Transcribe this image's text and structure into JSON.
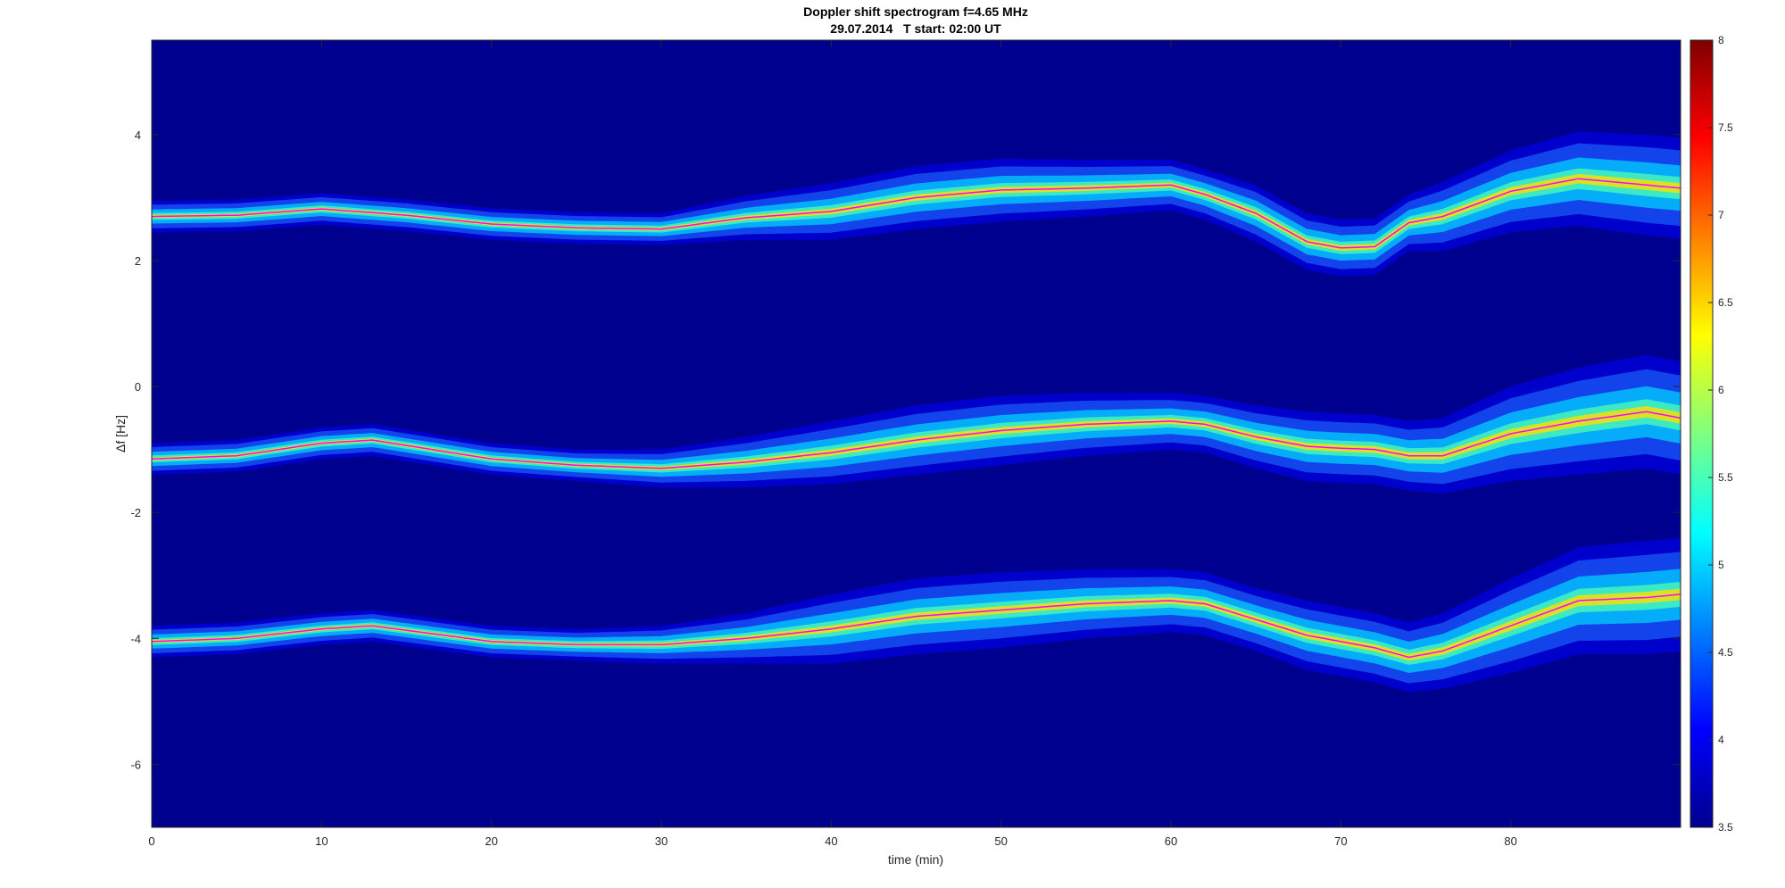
{
  "chart_data": {
    "type": "heatmap",
    "title": "Doppler shift spectrogram f=4.65 MHz",
    "subtitle": "29.07.2014   T start: 02:00 UT",
    "xlabel": "time (min)",
    "ylabel": "Δf [Hz]",
    "xlim": [
      0,
      90
    ],
    "ylim": [
      -7,
      5.5
    ],
    "xticks": [
      0,
      10,
      20,
      30,
      40,
      50,
      60,
      70,
      80
    ],
    "yticks": [
      4,
      2,
      0,
      -2,
      -4,
      -6
    ],
    "colorbar": {
      "range": [
        3.5,
        8
      ],
      "ticks": [
        3.5,
        4,
        4.5,
        5,
        5.5,
        6,
        6.5,
        7,
        7.5,
        8
      ],
      "colormap": "jet"
    },
    "background_color": "#00008f",
    "traces": [
      {
        "x": [
          0,
          5,
          10,
          15,
          20,
          25,
          30,
          35,
          40,
          45,
          50,
          55,
          60,
          62,
          65,
          68,
          70,
          72,
          74,
          76,
          80,
          84,
          88,
          90
        ],
        "y": [
          2.7,
          2.72,
          2.82,
          2.72,
          2.58,
          2.52,
          2.5,
          2.68,
          2.78,
          3.0,
          3.12,
          3.15,
          3.2,
          3.05,
          2.75,
          2.3,
          2.2,
          2.22,
          2.6,
          2.7,
          3.1,
          3.3,
          3.2,
          3.15
        ],
        "spread": [
          0.25,
          0.25,
          0.25,
          0.25,
          0.25,
          0.25,
          0.25,
          0.35,
          0.45,
          0.5,
          0.5,
          0.45,
          0.4,
          0.4,
          0.45,
          0.45,
          0.45,
          0.45,
          0.45,
          0.55,
          0.65,
          0.75,
          0.8,
          0.8
        ]
      },
      {
        "x": [
          0,
          5,
          10,
          13,
          20,
          25,
          30,
          35,
          40,
          45,
          50,
          55,
          60,
          62,
          65,
          68,
          70,
          72,
          74,
          76,
          80,
          84,
          88,
          90
        ],
        "y": [
          -1.15,
          -1.1,
          -0.9,
          -0.85,
          -1.15,
          -1.25,
          -1.3,
          -1.2,
          -1.05,
          -0.85,
          -0.7,
          -0.6,
          -0.55,
          -0.6,
          -0.8,
          -0.95,
          -0.98,
          -1.0,
          -1.1,
          -1.1,
          -0.75,
          -0.55,
          -0.4,
          -0.5
        ],
        "spread": [
          0.25,
          0.25,
          0.25,
          0.25,
          0.25,
          0.25,
          0.3,
          0.4,
          0.5,
          0.55,
          0.55,
          0.5,
          0.45,
          0.45,
          0.5,
          0.55,
          0.55,
          0.55,
          0.55,
          0.6,
          0.75,
          0.85,
          0.9,
          0.9
        ]
      },
      {
        "x": [
          0,
          5,
          10,
          13,
          20,
          25,
          30,
          35,
          40,
          45,
          50,
          55,
          60,
          62,
          65,
          68,
          70,
          72,
          74,
          76,
          80,
          84,
          88,
          90
        ],
        "y": [
          -4.05,
          -4.0,
          -3.85,
          -3.8,
          -4.05,
          -4.1,
          -4.1,
          -4.0,
          -3.85,
          -3.65,
          -3.55,
          -3.45,
          -3.4,
          -3.45,
          -3.7,
          -3.95,
          -4.05,
          -4.15,
          -4.3,
          -4.2,
          -3.8,
          -3.4,
          -3.35,
          -3.3
        ],
        "spread": [
          0.25,
          0.25,
          0.25,
          0.25,
          0.25,
          0.25,
          0.3,
          0.4,
          0.55,
          0.6,
          0.6,
          0.55,
          0.5,
          0.5,
          0.5,
          0.55,
          0.55,
          0.55,
          0.55,
          0.6,
          0.75,
          0.85,
          0.9,
          0.9
        ]
      }
    ],
    "trace_line_color": "#ff00ff"
  }
}
